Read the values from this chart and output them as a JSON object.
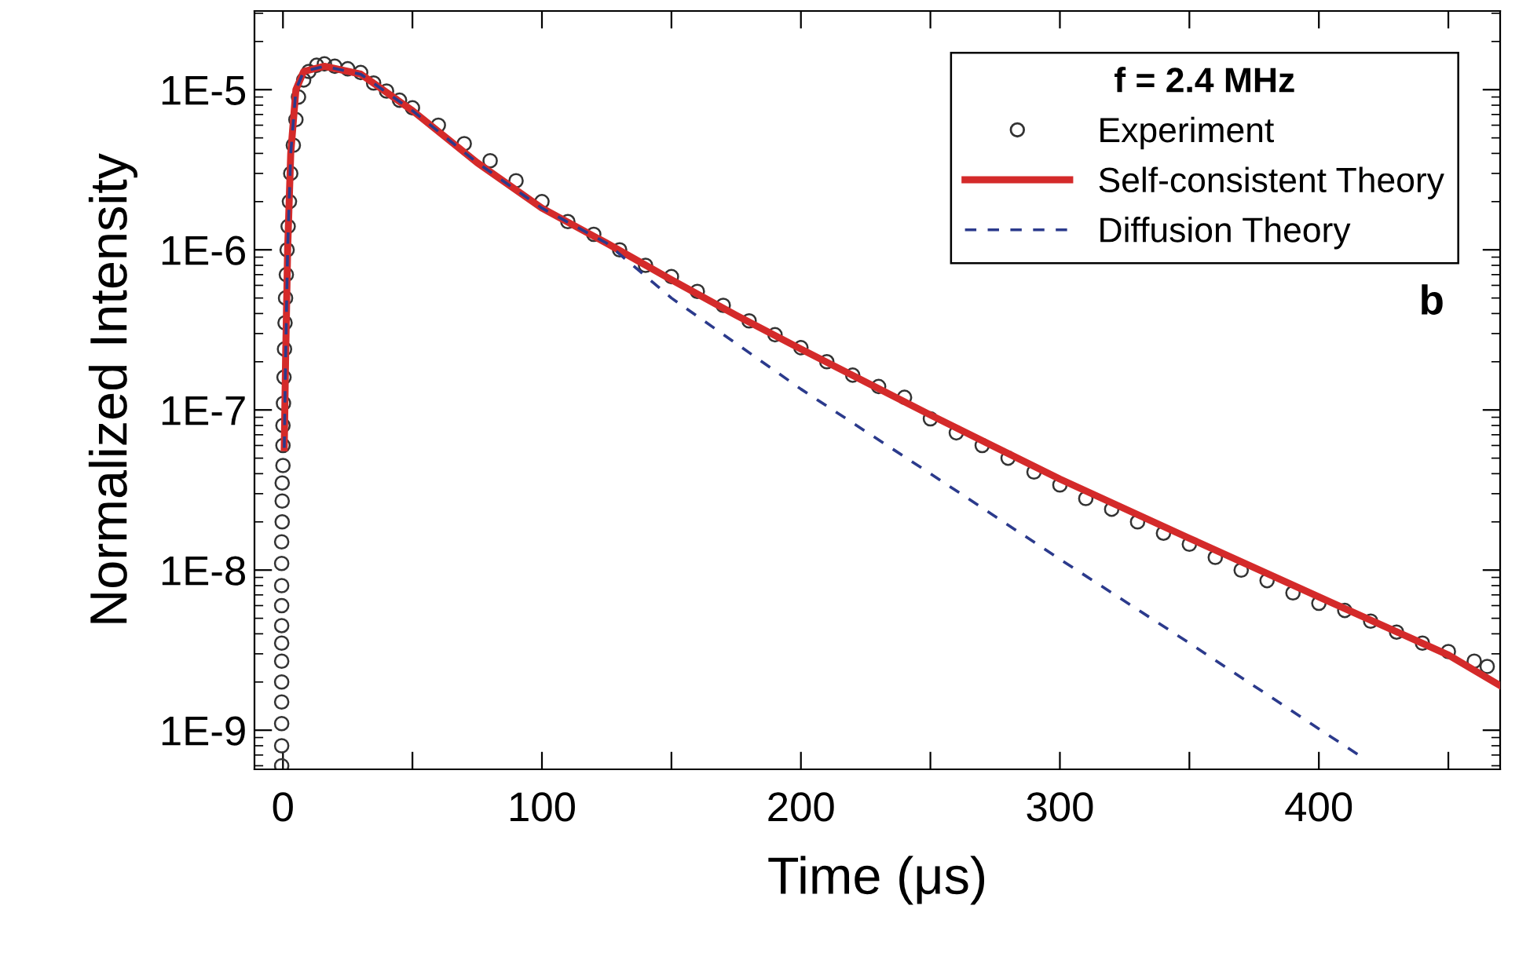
{
  "chart_data": {
    "type": "scatter",
    "xlabel": "Time (μs)",
    "ylabel": "Normalized Intensity",
    "legend_title": "f = 2.4 MHz",
    "annotations": [
      "b"
    ],
    "log": "y",
    "grid": false,
    "legend": "top right",
    "xlim": [
      -11,
      470
    ],
    "ylim": [
      5.7e-10,
      3.1e-05
    ],
    "xticks": [
      0,
      {
        "value": 50,
        "label": null
      },
      100,
      {
        "value": 150,
        "label": null
      },
      200,
      {
        "value": 250,
        "label": null
      },
      300,
      {
        "value": 350,
        "label": null
      },
      400,
      {
        "value": 450,
        "label": null
      }
    ],
    "yticks": [
      {
        "value": 1e-09,
        "label": "1E-9"
      },
      {
        "value": 1e-08,
        "label": "1E-8"
      },
      {
        "value": 1e-07,
        "label": "1E-7"
      },
      {
        "value": 1e-06,
        "label": "1E-6"
      },
      {
        "value": 1e-05,
        "label": "1E-5"
      }
    ],
    "series": [
      {
        "name": "Experiment",
        "marker": "circle",
        "color": "#333333",
        "x": [
          -0.5,
          -0.5,
          -0.5,
          -0.5,
          -0.5,
          -0.5,
          -0.5,
          -0.5,
          -0.5,
          -0.5,
          -0.5,
          -0.5,
          -0.3,
          -0.3,
          -0.3,
          0,
          0,
          0,
          0.2,
          0.4,
          0.6,
          0.8,
          1,
          1.3,
          1.6,
          2,
          2.5,
          3,
          4,
          5,
          6,
          8,
          10,
          13,
          16,
          20,
          25,
          30,
          35,
          40,
          45,
          50,
          60,
          70,
          80,
          90,
          100,
          110,
          120,
          130,
          140,
          150,
          160,
          170,
          180,
          190,
          200,
          210,
          220,
          230,
          240,
          250,
          260,
          270,
          280,
          290,
          300,
          310,
          320,
          330,
          340,
          350,
          360,
          370,
          380,
          390,
          400,
          410,
          420,
          430,
          440,
          450,
          460,
          465
        ],
        "values": [
          6e-10,
          8e-10,
          1.1e-09,
          1.5e-09,
          2e-09,
          2.7e-09,
          3.5e-09,
          4.5e-09,
          6e-09,
          8e-09,
          1.1e-08,
          1.5e-08,
          2e-08,
          2.7e-08,
          3.5e-08,
          4.5e-08,
          6e-08,
          8e-08,
          1.1e-07,
          1.6e-07,
          2.4e-07,
          3.5e-07,
          5e-07,
          7e-07,
          1e-06,
          1.4e-06,
          2e-06,
          3e-06,
          4.5e-06,
          6.5e-06,
          9e-06,
          1.15e-05,
          1.3e-05,
          1.42e-05,
          1.45e-05,
          1.4e-05,
          1.35e-05,
          1.28e-05,
          1.1e-05,
          9.8e-06,
          8.6e-06,
          7.7e-06,
          6e-06,
          4.6e-06,
          3.6e-06,
          2.7e-06,
          2e-06,
          1.5e-06,
          1.25e-06,
          1e-06,
          8e-07,
          6.8e-07,
          5.5e-07,
          4.5e-07,
          3.6e-07,
          2.95e-07,
          2.45e-07,
          2e-07,
          1.65e-07,
          1.4e-07,
          1.2e-07,
          8.8e-08,
          7.2e-08,
          6e-08,
          5e-08,
          4.1e-08,
          3.4e-08,
          2.8e-08,
          2.4e-08,
          2e-08,
          1.7e-08,
          1.45e-08,
          1.2e-08,
          1e-08,
          8.6e-09,
          7.2e-09,
          6.2e-09,
          5.6e-09,
          4.8e-09,
          4.1e-09,
          3.5e-09,
          3.1e-09,
          2.7e-09,
          2.5e-09
        ]
      },
      {
        "name": "Self-consistent Theory",
        "type": "line",
        "line_style": "solid",
        "color": "#d42a2a",
        "x": [
          0.5,
          1,
          1.8,
          3,
          5,
          8,
          16,
          30,
          50,
          75,
          100,
          125,
          150,
          175,
          200,
          250,
          300,
          350,
          400,
          450,
          470
        ],
        "values": [
          5.8e-08,
          2e-07,
          1e-06,
          4e-06,
          1e-05,
          1.3e-05,
          1.4e-05,
          1.25e-05,
          7.4e-06,
          3.5e-06,
          1.82e-06,
          1.1e-06,
          6.5e-07,
          3.9e-07,
          2.4e-07,
          9.3e-08,
          3.7e-08,
          1.58e-08,
          6.8e-09,
          2.95e-09,
          1.9e-09
        ]
      },
      {
        "name": "Diffusion Theory",
        "type": "line",
        "line_style": "dashed",
        "color": "#2b3a8c",
        "x": [
          0.5,
          1,
          1.8,
          3,
          5,
          8,
          16,
          30,
          50,
          75,
          100,
          125,
          150,
          200,
          250,
          300,
          350,
          400,
          416
        ],
        "values": [
          5.8e-08,
          2e-07,
          1e-06,
          4e-06,
          1e-05,
          1.3e-05,
          1.4e-05,
          1.25e-05,
          7.4e-06,
          3.5e-06,
          1.82e-06,
          1.1e-06,
          5e-07,
          1.35e-07,
          4e-08,
          1.17e-08,
          3.5e-09,
          1.02e-09,
          6.9e-10
        ]
      }
    ]
  }
}
